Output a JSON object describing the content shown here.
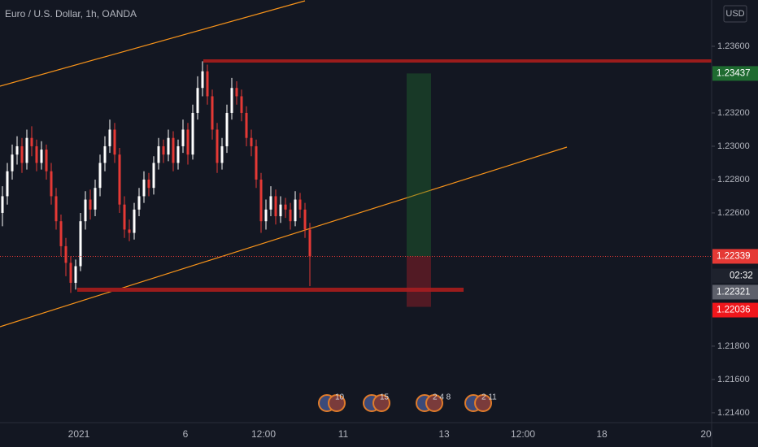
{
  "chart_data": {
    "type": "candlestick",
    "title": "Euro / U.S. Dollar, 1h, OANDA",
    "currency": "USD",
    "countdown": "02:32",
    "ylim": [
      1.21341,
      1.23878
    ],
    "yticks": [
      {
        "value": 1.214,
        "label": "1.21400"
      },
      {
        "value": 1.216,
        "label": "1.21600"
      },
      {
        "value": 1.218,
        "label": "1.21800"
      },
      {
        "value": 1.226,
        "label": "1.22600"
      },
      {
        "value": 1.228,
        "label": "1.22800"
      },
      {
        "value": 1.23,
        "label": "1.23000"
      },
      {
        "value": 1.232,
        "label": "1.23200"
      },
      {
        "value": 1.236,
        "label": "1.23600"
      }
    ],
    "x_labels": [
      "2021",
      "6",
      "12:00",
      "11",
      "13",
      "12:00",
      "18",
      "20"
    ],
    "up_color": "#ffffff",
    "down_color": "#e53935",
    "open": [
      1.226,
      1.227,
      1.2285,
      1.2295,
      1.23,
      1.229,
      1.2305,
      1.23,
      1.229,
      1.2298,
      1.2285,
      1.227,
      1.2255,
      1.224,
      1.223,
      1.2218,
      1.2228,
      1.2255,
      1.2268,
      1.2262,
      1.2275,
      1.229,
      1.23,
      1.231,
      1.2295,
      1.2265,
      1.225,
      1.2248,
      1.2262,
      1.227,
      1.228,
      1.2275,
      1.229,
      1.23,
      1.2295,
      1.2305,
      1.229,
      1.23,
      1.231,
      1.2295,
      1.232,
      1.2335,
      1.2345,
      1.233,
      1.231,
      1.229,
      1.23,
      1.232,
      1.2335,
      1.233,
      1.232,
      1.2305,
      1.23,
      1.228,
      1.2255,
      1.2262,
      1.227,
      1.2258,
      1.2265,
      1.2262,
      1.2255,
      1.2268,
      1.2262,
      1.225
    ],
    "high": [
      1.2276,
      1.229,
      1.2301,
      1.2306,
      1.2305,
      1.231,
      1.2312,
      1.2304,
      1.2303,
      1.2301,
      1.229,
      1.2275,
      1.2259,
      1.2245,
      1.2234,
      1.2232,
      1.226,
      1.2273,
      1.2274,
      1.228,
      1.2295,
      1.2306,
      1.2316,
      1.2314,
      1.2299,
      1.227,
      1.2256,
      1.2266,
      1.2275,
      1.2285,
      1.2284,
      1.2294,
      1.2305,
      1.2304,
      1.231,
      1.2309,
      1.2304,
      1.2316,
      1.2314,
      1.2325,
      1.2342,
      1.2351,
      1.2349,
      1.2334,
      1.2314,
      1.2305,
      1.2325,
      1.2341,
      1.2339,
      1.2334,
      1.2324,
      1.231,
      1.2304,
      1.2284,
      1.2268,
      1.2276,
      1.2274,
      1.227,
      1.2269,
      1.2266,
      1.2273,
      1.2272,
      1.2266,
      1.2254
    ],
    "low": [
      1.2252,
      1.2265,
      1.228,
      1.2289,
      1.2284,
      1.2286,
      1.2294,
      1.2285,
      1.2286,
      1.228,
      1.2265,
      1.225,
      1.2234,
      1.2222,
      1.2212,
      1.2214,
      1.2225,
      1.225,
      1.2256,
      1.2258,
      1.227,
      1.2285,
      1.2296,
      1.229,
      1.226,
      1.2245,
      1.2243,
      1.2244,
      1.2258,
      1.2266,
      1.227,
      1.2271,
      1.2286,
      1.229,
      1.2291,
      1.2285,
      1.2286,
      1.2296,
      1.2289,
      1.2292,
      1.2316,
      1.233,
      1.2325,
      1.2304,
      1.2284,
      1.2286,
      1.2296,
      1.2316,
      1.2325,
      1.2315,
      1.23,
      1.2294,
      1.2275,
      1.2248,
      1.225,
      1.2258,
      1.2253,
      1.2254,
      1.2257,
      1.225,
      1.2252,
      1.2257,
      1.2245,
      1.2216
    ],
    "close": [
      1.227,
      1.2285,
      1.2295,
      1.23,
      1.229,
      1.2305,
      1.23,
      1.229,
      1.2298,
      1.2285,
      1.227,
      1.2255,
      1.224,
      1.223,
      1.2218,
      1.2228,
      1.2255,
      1.2268,
      1.2262,
      1.2275,
      1.229,
      1.23,
      1.231,
      1.2295,
      1.2265,
      1.225,
      1.2248,
      1.2262,
      1.227,
      1.228,
      1.2275,
      1.229,
      1.23,
      1.2295,
      1.2305,
      1.229,
      1.23,
      1.231,
      1.2295,
      1.232,
      1.2335,
      1.2345,
      1.233,
      1.231,
      1.229,
      1.23,
      1.232,
      1.2335,
      1.233,
      1.232,
      1.2305,
      1.23,
      1.228,
      1.2255,
      1.2262,
      1.227,
      1.2258,
      1.2265,
      1.2262,
      1.2255,
      1.2268,
      1.2262,
      1.225,
      1.2234
    ],
    "take_profit": 1.23437,
    "last_price": 1.22339,
    "entry_price": 1.22321,
    "stop_loss": 1.22036,
    "events": [
      "10",
      "15",
      "2 4 8",
      "2 11"
    ]
  }
}
